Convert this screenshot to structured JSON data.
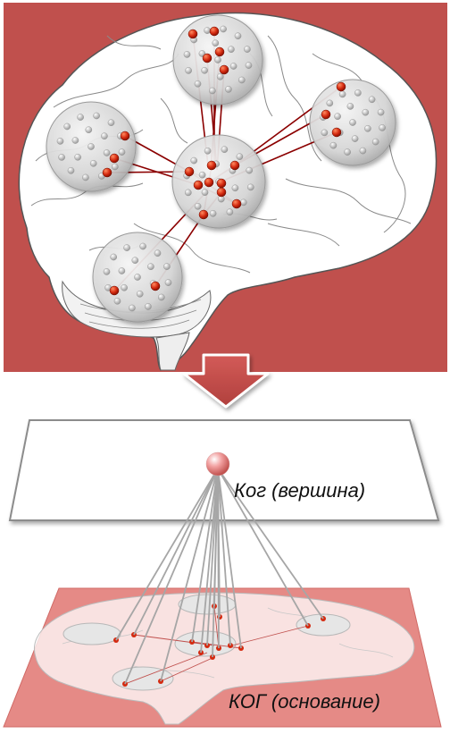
{
  "labels": {
    "top": "Ког (вершина)",
    "bottom": "КОГ (основание)"
  },
  "colors": {
    "panel_red": "#c0504d",
    "panel_red_light": "#e8908c",
    "neuron_red": "#d42a10",
    "link_red": "#8b0000",
    "arrow_red": "#c0504d",
    "sphere_gray": "#d9d9d9",
    "dot_gray": "#bcbcbc",
    "plane_border": "#808080",
    "projection_line": "#a6a6a6"
  }
}
